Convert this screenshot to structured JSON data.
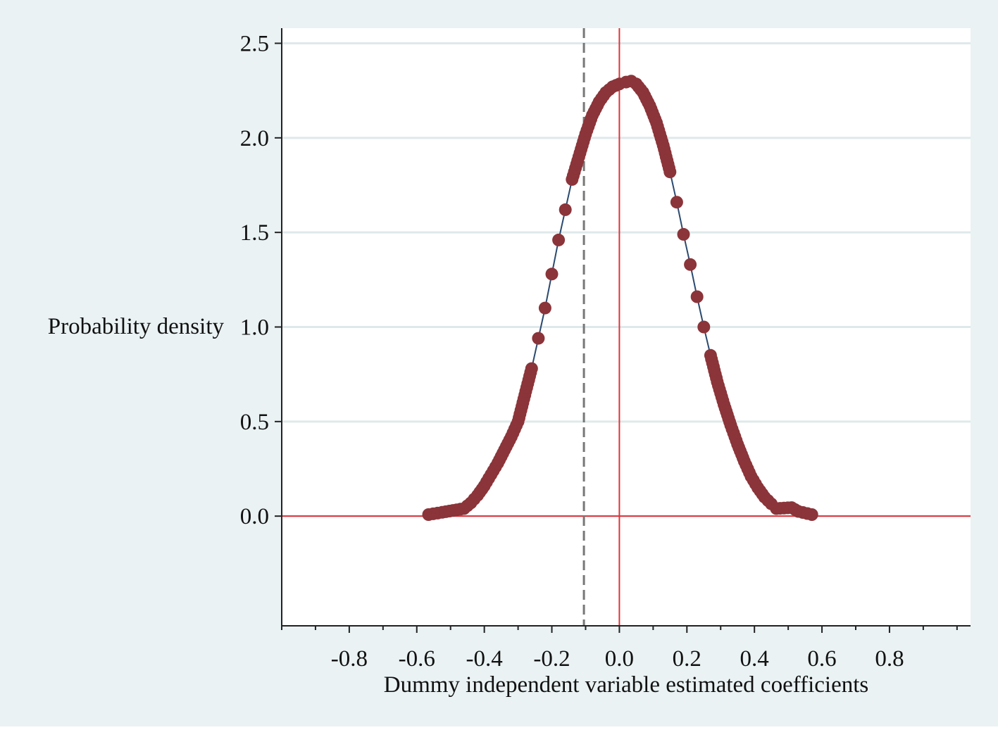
{
  "chart_data": {
    "type": "scatter",
    "title": "",
    "xlabel": "Dummy independent variable estimated coefficients",
    "ylabel": "Probability density",
    "xlim": [
      -1.0,
      1.04
    ],
    "ylim": [
      -0.58,
      2.58
    ],
    "x_ticks": [
      -0.8,
      -0.6,
      -0.4,
      -0.2,
      0.0,
      0.2,
      0.4,
      0.6,
      0.8
    ],
    "x_tick_labels": [
      "-0.8",
      "-0.6",
      "-0.4",
      "-0.2",
      "0.0",
      "0.2",
      "0.4",
      "0.6",
      "0.8"
    ],
    "y_ticks": [
      0.0,
      0.5,
      1.0,
      1.5,
      2.0,
      2.5
    ],
    "y_tick_labels": [
      "0.0",
      "0.5",
      "1.0",
      "1.5",
      "2.0",
      "2.5"
    ],
    "grid": true,
    "legend": "none",
    "reference_lines": [
      {
        "orientation": "vertical",
        "value": 0.0,
        "style": "solid",
        "color": "#e0323a"
      },
      {
        "orientation": "horizontal",
        "value": 0.0,
        "style": "solid",
        "color": "#e0323a"
      },
      {
        "orientation": "vertical",
        "value": -0.105,
        "style": "dashed",
        "color": "#777777"
      }
    ],
    "series": [
      {
        "marker_color": "#8b3439",
        "line_color": "#2b4a6f",
        "points": [
          [
            -0.565,
            0.008
          ],
          [
            -0.525,
            0.02
          ],
          [
            -0.46,
            0.04
          ],
          [
            -0.44,
            0.07
          ],
          [
            -0.42,
            0.11
          ],
          [
            -0.4,
            0.16
          ],
          [
            -0.38,
            0.22
          ],
          [
            -0.36,
            0.28
          ],
          [
            -0.34,
            0.35
          ],
          [
            -0.32,
            0.42
          ],
          [
            -0.3,
            0.5
          ],
          [
            -0.28,
            0.64
          ],
          [
            -0.26,
            0.78
          ],
          [
            -0.24,
            0.94
          ],
          [
            -0.22,
            1.1
          ],
          [
            -0.2,
            1.28
          ],
          [
            -0.18,
            1.46
          ],
          [
            -0.16,
            1.62
          ],
          [
            -0.14,
            1.78
          ],
          [
            -0.12,
            1.9
          ],
          [
            -0.1,
            2.02
          ],
          [
            -0.08,
            2.12
          ],
          [
            -0.06,
            2.19
          ],
          [
            -0.04,
            2.24
          ],
          [
            -0.02,
            2.27
          ],
          [
            0.0,
            2.285
          ],
          [
            0.02,
            2.295
          ],
          [
            0.035,
            2.3
          ],
          [
            0.05,
            2.285
          ],
          [
            0.07,
            2.24
          ],
          [
            0.09,
            2.17
          ],
          [
            0.11,
            2.08
          ],
          [
            0.13,
            1.96
          ],
          [
            0.15,
            1.82
          ],
          [
            0.17,
            1.66
          ],
          [
            0.19,
            1.49
          ],
          [
            0.21,
            1.33
          ],
          [
            0.23,
            1.16
          ],
          [
            0.25,
            1.0
          ],
          [
            0.27,
            0.85
          ],
          [
            0.29,
            0.71
          ],
          [
            0.31,
            0.59
          ],
          [
            0.33,
            0.48
          ],
          [
            0.35,
            0.38
          ],
          [
            0.37,
            0.29
          ],
          [
            0.39,
            0.21
          ],
          [
            0.41,
            0.15
          ],
          [
            0.43,
            0.1
          ],
          [
            0.45,
            0.065
          ],
          [
            0.465,
            0.04
          ],
          [
            0.51,
            0.045
          ],
          [
            0.53,
            0.025
          ],
          [
            0.57,
            0.008
          ]
        ]
      }
    ]
  }
}
